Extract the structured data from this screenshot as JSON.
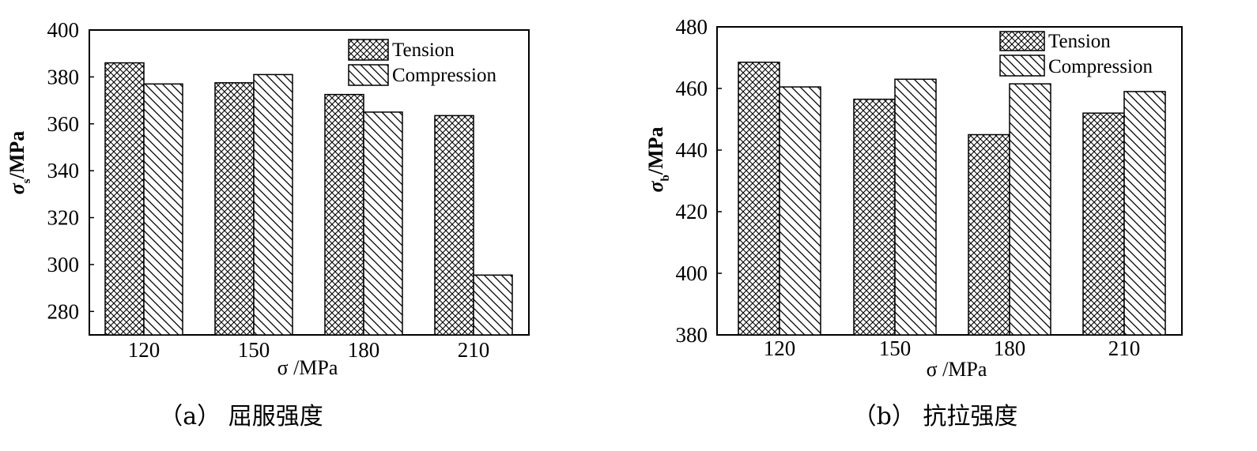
{
  "chart_data": [
    {
      "type": "bar",
      "panel": "a",
      "caption": "（a） 屈服强度",
      "categories": [
        "120",
        "150",
        "180",
        "210"
      ],
      "series": [
        {
          "name": "Tension",
          "values": [
            386,
            377.5,
            372.5,
            363.5
          ]
        },
        {
          "name": "Compression",
          "values": [
            377,
            381,
            365,
            295.5
          ]
        }
      ],
      "xlabel": "σ /MPa",
      "ylabel": "σs /MPa",
      "ylabel_main": "σ",
      "ylabel_sub": "s",
      "ylabel_unit": "/MPa",
      "ylim": [
        270,
        400
      ],
      "yticks": [
        280,
        300,
        320,
        340,
        360,
        380,
        400
      ],
      "legend_position": "top-right",
      "grid": false
    },
    {
      "type": "bar",
      "panel": "b",
      "caption": "（b） 抗拉强度",
      "categories": [
        "120",
        "150",
        "180",
        "210"
      ],
      "series": [
        {
          "name": "Tension",
          "values": [
            468.5,
            456.5,
            445,
            452
          ]
        },
        {
          "name": "Compression",
          "values": [
            460.5,
            463,
            461.5,
            459
          ]
        }
      ],
      "xlabel": "σ /MPa",
      "ylabel": "σb /MPa",
      "ylabel_main": "σ",
      "ylabel_sub": "b",
      "ylabel_unit": "/MPa",
      "ylim": [
        380,
        480
      ],
      "yticks": [
        380,
        400,
        420,
        440,
        460,
        480
      ],
      "legend_position": "top-right",
      "grid": false
    }
  ],
  "colors": {
    "bar_fill": "#ffffff",
    "stroke": "#000000"
  }
}
